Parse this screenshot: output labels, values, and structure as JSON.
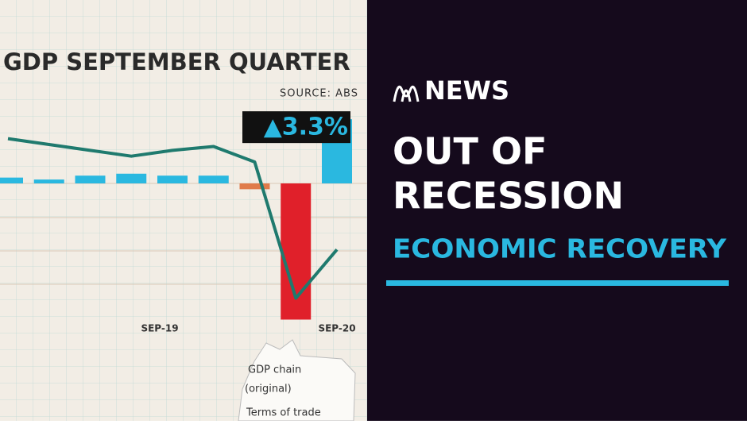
{
  "chart_data": {
    "type": "bar",
    "title": "GDP SEPTEMBER QUARTER",
    "source": "SOURCE: ABS",
    "categories": [
      null,
      null,
      null,
      null,
      "SEP-19",
      null,
      null,
      null,
      "SEP-20"
    ],
    "values": [
      0.3,
      0.2,
      0.4,
      0.5,
      0.4,
      0.4,
      -0.3,
      -7.0,
      3.3
    ],
    "value_labels": [
      null,
      null,
      null,
      null,
      null,
      null,
      null,
      null,
      "▲3.3%"
    ],
    "colors": [
      "#2ab8e0",
      "#2ab8e0",
      "#2ab8e0",
      "#2ab8e0",
      "#2ab8e0",
      "#2ab8e0",
      "#e07b4a",
      "#e0202a",
      "#2ab8e0"
    ],
    "line": {
      "color": "#1f7a6e",
      "values": [
        2.3,
        2.0,
        1.7,
        1.4,
        1.7,
        1.9,
        1.1,
        -5.9,
        -3.4
      ]
    },
    "ylim": [
      -7.5,
      9.5
    ],
    "annotations": [
      "GDP chain",
      "(original)",
      "Terms of trade"
    ]
  },
  "panel": {
    "brand": "NEWS",
    "headline": [
      "OUT OF",
      "RECESSION"
    ],
    "tag": "ECONOMIC RECOVERY"
  }
}
